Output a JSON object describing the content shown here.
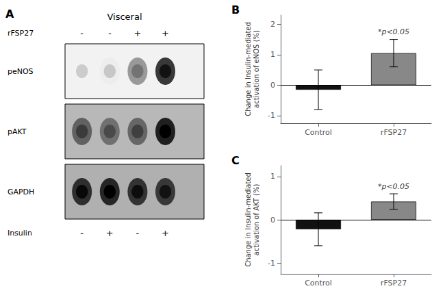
{
  "chart_data": [
    {
      "type": "blot",
      "panel_label": "A",
      "title": "Visceral",
      "rows": [
        "peNOS",
        "pAKT",
        "GAPDH"
      ],
      "lanes": [
        {
          "name": "rFSP27",
          "labels": [
            "-",
            "-",
            "+",
            "+"
          ]
        },
        {
          "name": "Insulin",
          "labels": [
            "-",
            "+",
            "-",
            "+"
          ]
        }
      ]
    },
    {
      "type": "bar",
      "panel_label": "B",
      "categories": [
        "Control",
        "rFSP27"
      ],
      "values": [
        -0.15,
        1.05
      ],
      "errors": [
        0.65,
        0.45
      ],
      "colors": [
        "#111111",
        "#888888"
      ],
      "ylabel": "Change in Insulin-mediated\nactivation of eNOS (%)",
      "ylim": [
        -1.25,
        2.3
      ],
      "yticks": [
        -1,
        0,
        1,
        2
      ],
      "grid": false,
      "annotations": [
        {
          "text": "*p<0.05",
          "x": "rFSP27",
          "y": 1.58
        }
      ]
    },
    {
      "type": "bar",
      "panel_label": "C",
      "categories": [
        "Control",
        "rFSP27"
      ],
      "values": [
        -0.22,
        0.42
      ],
      "errors": [
        0.38,
        0.18
      ],
      "colors": [
        "#111111",
        "#888888"
      ],
      "ylabel": "Change in Insulin-mediated\nactivation of AKT (%)",
      "ylim": [
        -1.25,
        1.25
      ],
      "yticks": [
        -1,
        0,
        1
      ],
      "grid": false,
      "annotations": [
        {
          "text": "*p<0.05",
          "x": "rFSP27",
          "y": 0.65
        }
      ]
    }
  ]
}
